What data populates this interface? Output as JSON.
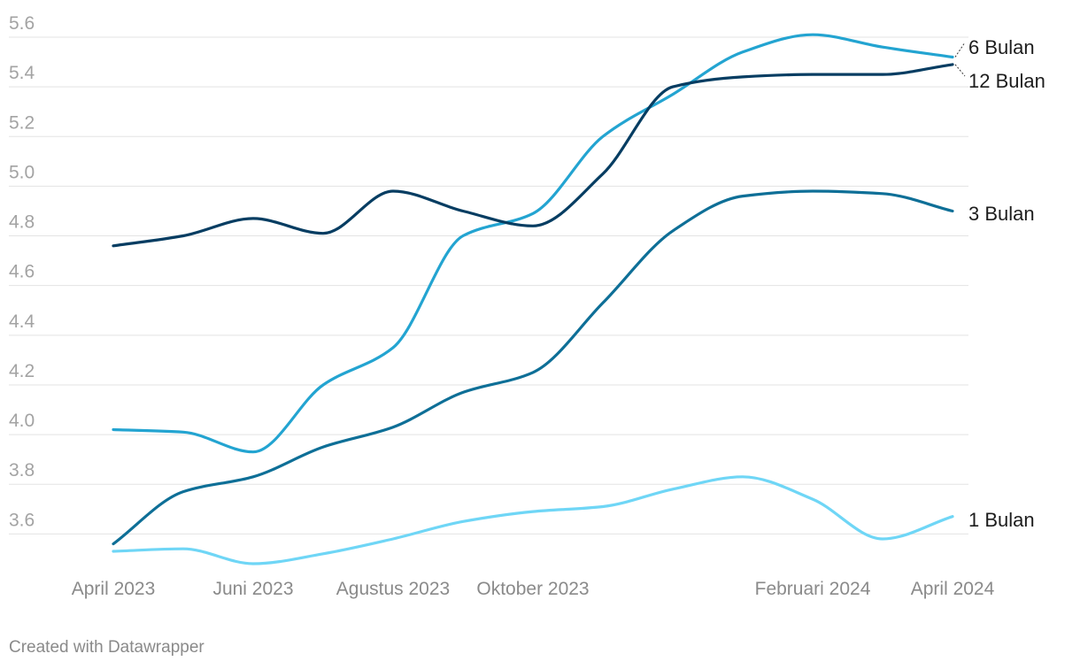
{
  "chart_data": {
    "type": "line",
    "title": "",
    "xlabel": "",
    "ylabel": "",
    "ylim": [
      3.4,
      5.65
    ],
    "y_ticks": [
      "3.6",
      "3.8",
      "4.0",
      "4.2",
      "4.4",
      "4.6",
      "4.8",
      "5.0",
      "5.2",
      "5.4",
      "5.6"
    ],
    "x_tick_labels": [
      "April 2023",
      "Juni 2023",
      "Agustus 2023",
      "Oktober 2023",
      "Februari 2024",
      "April 2024"
    ],
    "x_tick_index": [
      0,
      2,
      4,
      6,
      10,
      12
    ],
    "x": [
      "2023-04",
      "2023-05",
      "2023-06",
      "2023-07",
      "2023-08",
      "2023-09",
      "2023-10",
      "2023-11",
      "2023-12",
      "2024-01",
      "2024-02",
      "2024-03",
      "2024-04"
    ],
    "grid": true,
    "legend": "direct-labels-right",
    "series": [
      {
        "name": "1 Bulan",
        "color": "#6fd6f6",
        "values": [
          3.53,
          3.54,
          3.48,
          3.52,
          3.58,
          3.65,
          3.69,
          3.71,
          3.78,
          3.83,
          3.74,
          3.58,
          3.67
        ]
      },
      {
        "name": "3 Bulan",
        "color": "#0e6f97",
        "values": [
          3.56,
          3.77,
          3.83,
          3.95,
          4.03,
          4.17,
          4.25,
          4.53,
          4.82,
          4.96,
          4.98,
          4.97,
          4.9
        ]
      },
      {
        "name": "6 Bulan",
        "color": "#23a4d1",
        "values": [
          4.02,
          4.01,
          3.93,
          4.2,
          4.35,
          4.8,
          4.89,
          5.2,
          5.37,
          5.54,
          5.61,
          5.56,
          5.52
        ]
      },
      {
        "name": "12 Bulan",
        "color": "#063d62",
        "values": [
          4.76,
          4.8,
          4.87,
          4.81,
          4.98,
          4.9,
          4.84,
          5.05,
          5.4,
          5.44,
          5.45,
          5.45,
          5.49
        ]
      }
    ]
  },
  "credit": "Created with Datawrapper"
}
